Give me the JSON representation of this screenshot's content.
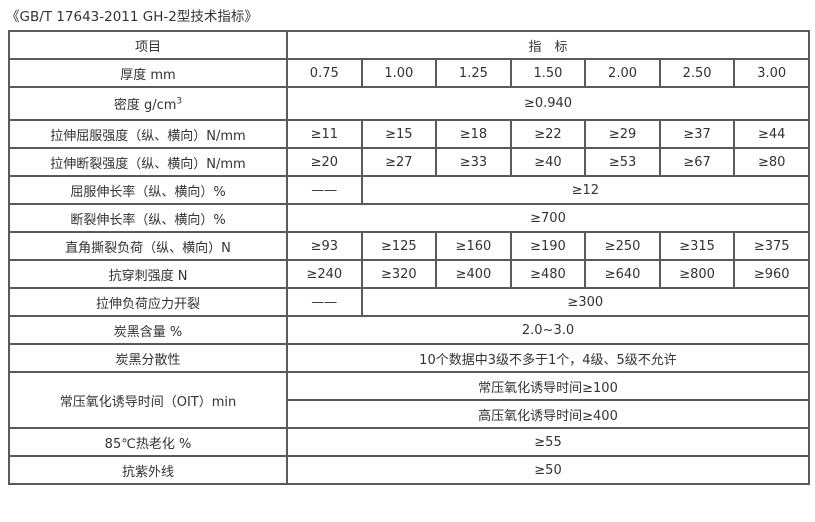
{
  "title": "《GB/T 17643-2011 GH-2型技术指标》",
  "table": {
    "header": {
      "label": "项目",
      "value": "指　标"
    },
    "rows": [
      {
        "label": "厚度 mm",
        "cells": [
          {
            "text": "0.75"
          },
          {
            "text": "1.00"
          },
          {
            "text": "1.25"
          },
          {
            "text": "1.50"
          },
          {
            "text": "2.00"
          },
          {
            "text": "2.50"
          },
          {
            "text": "3.00"
          }
        ]
      },
      {
        "label": "密度 g/cm",
        "sup": "3",
        "tall": true,
        "cells": [
          {
            "text": "≥0.940",
            "span": 7
          }
        ]
      },
      {
        "label": "拉伸屈服强度（纵、横向）N/mm",
        "cells": [
          {
            "text": "≥11"
          },
          {
            "text": "≥15"
          },
          {
            "text": "≥18"
          },
          {
            "text": "≥22"
          },
          {
            "text": "≥29"
          },
          {
            "text": "≥37"
          },
          {
            "text": "≥44"
          }
        ]
      },
      {
        "label": "拉伸断裂强度（纵、横向）N/mm",
        "cells": [
          {
            "text": "≥20"
          },
          {
            "text": "≥27"
          },
          {
            "text": "≥33"
          },
          {
            "text": "≥40"
          },
          {
            "text": "≥53"
          },
          {
            "text": "≥67"
          },
          {
            "text": "≥80"
          }
        ]
      },
      {
        "label": "屈服伸长率（纵、横向）%",
        "cells": [
          {
            "text": "——"
          },
          {
            "text": "≥12",
            "span": 6
          }
        ]
      },
      {
        "label": "断裂伸长率（纵、横向）%",
        "cells": [
          {
            "text": "≥700",
            "span": 7
          }
        ]
      },
      {
        "label": "直角撕裂负荷（纵、横向）N",
        "cells": [
          {
            "text": "≥93"
          },
          {
            "text": "≥125"
          },
          {
            "text": "≥160"
          },
          {
            "text": "≥190"
          },
          {
            "text": "≥250"
          },
          {
            "text": "≥315"
          },
          {
            "text": "≥375"
          }
        ]
      },
      {
        "label": "抗穿刺强度 N",
        "cells": [
          {
            "text": "≥240"
          },
          {
            "text": "≥320"
          },
          {
            "text": "≥400"
          },
          {
            "text": "≥480"
          },
          {
            "text": "≥640"
          },
          {
            "text": "≥800"
          },
          {
            "text": "≥960"
          }
        ]
      },
      {
        "label": "拉伸负荷应力开裂",
        "cells": [
          {
            "text": "——"
          },
          {
            "text": "≥300",
            "span": 6
          }
        ]
      },
      {
        "label": "炭黑含量 %",
        "cells": [
          {
            "text": "2.0~3.0",
            "span": 7
          }
        ]
      },
      {
        "label": "炭黑分散性",
        "cells": [
          {
            "text": "10个数据中3级不多于1个，4级、5级不允许",
            "span": 7
          }
        ]
      },
      {
        "label": "常压氧化诱导时间（OIT）min",
        "rowspan": 2,
        "cells": [
          {
            "text": "常压氧化诱导时间≥100",
            "span": 7
          }
        ]
      },
      {
        "cells": [
          {
            "text": "高压氧化诱导时间≥400",
            "span": 7
          }
        ]
      },
      {
        "label": "85℃热老化 %",
        "cells": [
          {
            "text": "≥55",
            "span": 7
          }
        ]
      },
      {
        "label": "抗紫外线",
        "cells": [
          {
            "text": "≥50",
            "span": 7
          }
        ]
      }
    ]
  }
}
